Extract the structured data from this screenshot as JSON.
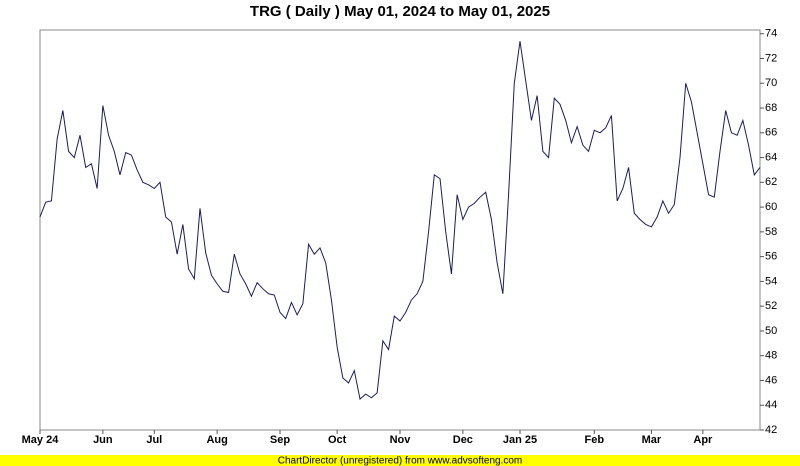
{
  "chart_data": {
    "type": "line",
    "title": "TRG ( Daily ) May 01, 2024 to May 01, 2025",
    "footer": "ChartDirector (unregistered) from www.advsofteng.com",
    "categories": [
      "May 24",
      null,
      null,
      null,
      null,
      null,
      null,
      null,
      null,
      null,
      null,
      "Jun",
      null,
      null,
      null,
      null,
      null,
      null,
      null,
      null,
      "Jul",
      null,
      null,
      null,
      null,
      null,
      null,
      null,
      null,
      null,
      null,
      "Aug",
      null,
      null,
      null,
      null,
      null,
      null,
      null,
      null,
      null,
      null,
      "Sep",
      null,
      null,
      null,
      null,
      null,
      null,
      null,
      null,
      null,
      "Oct",
      null,
      null,
      null,
      null,
      null,
      null,
      null,
      null,
      null,
      null,
      "Nov",
      null,
      null,
      null,
      null,
      null,
      null,
      null,
      null,
      null,
      null,
      "Dec",
      null,
      null,
      null,
      null,
      null,
      null,
      null,
      null,
      null,
      "Jan 25",
      null,
      null,
      null,
      null,
      null,
      null,
      null,
      null,
      null,
      null,
      null,
      null,
      "Feb",
      null,
      null,
      null,
      null,
      null,
      null,
      null,
      null,
      null,
      "Mar",
      null,
      null,
      null,
      null,
      null,
      null,
      null,
      null,
      "Apr",
      null,
      null,
      null,
      null,
      null,
      null,
      null,
      null,
      null,
      null
    ],
    "series": [
      {
        "name": "TRG",
        "color": "#1c1c5c",
        "values": [
          59.2,
          60.4,
          60.5,
          65.5,
          67.8,
          64.5,
          64.0,
          65.8,
          63.2,
          63.5,
          61.5,
          68.2,
          65.8,
          64.5,
          62.6,
          64.4,
          64.2,
          63.0,
          62.0,
          61.8,
          61.5,
          62.0,
          59.2,
          58.8,
          56.2,
          58.6,
          55.0,
          54.2,
          59.9,
          56.3,
          54.5,
          53.8,
          53.2,
          53.1,
          56.2,
          54.6,
          53.8,
          52.8,
          53.9,
          53.4,
          53.0,
          52.9,
          51.5,
          51.0,
          52.3,
          51.3,
          52.2,
          57.0,
          56.2,
          56.7,
          55.5,
          52.5,
          48.7,
          46.2,
          45.8,
          46.8,
          44.5,
          44.9,
          44.6,
          45.0,
          49.2,
          48.5,
          51.2,
          50.8,
          51.5,
          52.5,
          53.0,
          54.0,
          58.0,
          62.6,
          62.3,
          58.0,
          54.6,
          61.0,
          59.0,
          60.0,
          60.3,
          60.8,
          61.2,
          59.0,
          55.5,
          53.0,
          61.0,
          70.0,
          73.4,
          70.2,
          67.0,
          69.0,
          64.5,
          64.0,
          68.8,
          68.3,
          67.0,
          65.2,
          66.5,
          65.0,
          64.5,
          66.2,
          66.0,
          66.4,
          67.4,
          60.5,
          61.5,
          63.2,
          59.5,
          59.0,
          58.6,
          58.4,
          59.2,
          60.5,
          59.5,
          60.2,
          64.0,
          70.0,
          68.5,
          66.0,
          63.5,
          61.0,
          60.8,
          64.5,
          67.8,
          66.0,
          65.8,
          67.0,
          65.0,
          62.6,
          63.2
        ]
      }
    ],
    "ylim": [
      42,
      74.3
    ],
    "yticks": [
      42,
      44,
      46,
      48,
      50,
      52,
      54,
      56,
      58,
      60,
      62,
      64,
      66,
      68,
      70,
      72,
      74
    ]
  }
}
